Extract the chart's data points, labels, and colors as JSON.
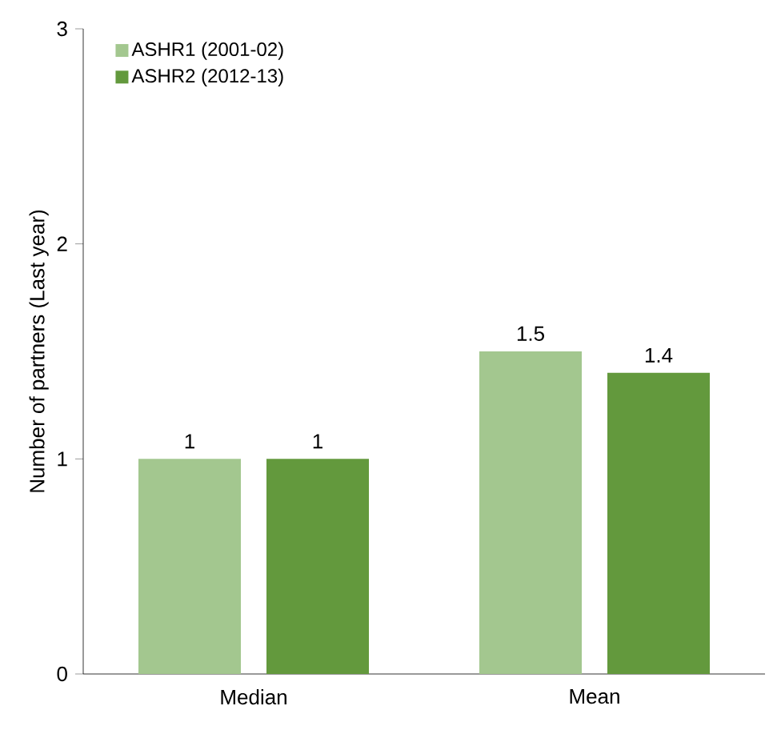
{
  "chart_data": {
    "type": "bar",
    "ylabel": "Number of partners (Last year)",
    "categories": [
      "Median",
      "Mean"
    ],
    "series": [
      {
        "name": "ASHR1 (2001-02)",
        "color": "#a3c78f",
        "values": [
          1,
          1.5
        ]
      },
      {
        "name": "ASHR2 (2012-13)",
        "color": "#63993d",
        "values": [
          1,
          1.4
        ]
      }
    ],
    "ylim": [
      0,
      3
    ],
    "yticks": [
      0,
      1,
      2,
      3
    ],
    "data_labels": true,
    "legend": "top left",
    "grid": false
  }
}
